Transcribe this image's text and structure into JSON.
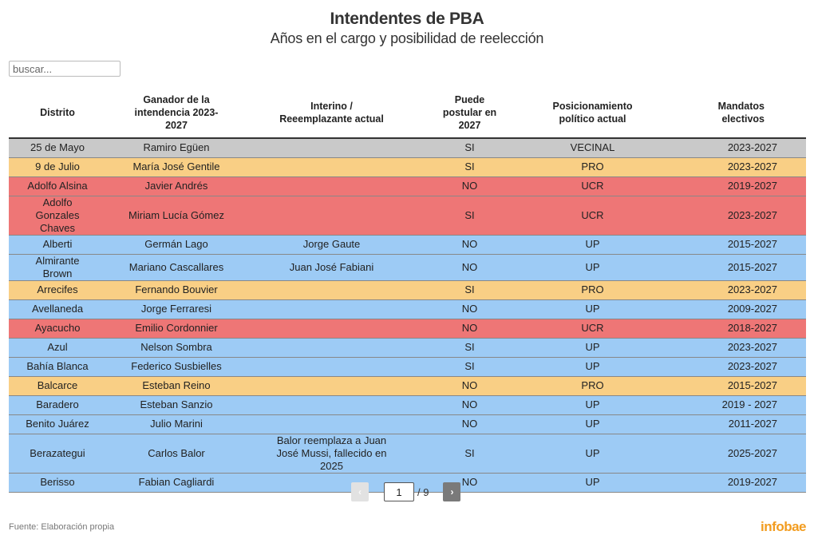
{
  "header": {
    "title": "Intendentes de PBA",
    "subtitle": "Años en el cargo y posibilidad de reelección"
  },
  "search": {
    "placeholder": "buscar...",
    "value": ""
  },
  "table": {
    "columns": [
      "Distrito",
      "Ganador de la intendencia 2023-2027",
      "Interino / Reeemplazante actual",
      "Puede postular en 2027",
      "Posicionamiento político actual",
      "Mandatos electivos"
    ],
    "rows": [
      [
        "25 de Mayo",
        "Ramiro Egüen",
        "",
        "SI",
        "VECINAL",
        "2023-2027"
      ],
      [
        "9 de Julio",
        "María José Gentile",
        "",
        "SI",
        "PRO",
        "2023-2027"
      ],
      [
        "Adolfo Alsina",
        "Javier Andrés",
        "",
        "NO",
        "UCR",
        "2019-2027"
      ],
      [
        "Adolfo Gonzales Chaves",
        "Miriam Lucía Gómez",
        "",
        "SI",
        "UCR",
        "2023-2027"
      ],
      [
        "Alberti",
        "Germán Lago",
        "Jorge Gaute",
        "NO",
        "UP",
        "2015-2027"
      ],
      [
        "Almirante Brown",
        "Mariano Cascallares",
        "Juan José Fabiani",
        "NO",
        "UP",
        "2015-2027"
      ],
      [
        "Arrecifes",
        "Fernando Bouvier",
        "",
        "SI",
        "PRO",
        "2023-2027"
      ],
      [
        "Avellaneda",
        "Jorge Ferraresi",
        "",
        "NO",
        "UP",
        "2009-2027"
      ],
      [
        "Ayacucho",
        "Emilio Cordonnier",
        "",
        "NO",
        "UCR",
        "2018-2027"
      ],
      [
        "Azul",
        "Nelson Sombra",
        "",
        "SI",
        "UP",
        "2023-2027"
      ],
      [
        "Bahía Blanca",
        "Federico Susbielles",
        "",
        "SI",
        "UP",
        "2023-2027"
      ],
      [
        "Balcarce",
        "Esteban Reino",
        "",
        "NO",
        "PRO",
        "2015-2027"
      ],
      [
        "Baradero",
        "Esteban Sanzio",
        "",
        "NO",
        "UP",
        "2019 - 2027"
      ],
      [
        "Benito Juárez",
        "Julio Marini",
        "",
        "NO",
        "UP",
        "2011-2027"
      ],
      [
        "Berazategui",
        "Carlos Balor",
        "Balor reemplaza a Juan José Mussi, fallecido en 2025",
        "SI",
        "UP",
        "2025-2027"
      ],
      [
        "Berisso",
        "Fabian Cagliardi",
        "",
        "NO",
        "UP",
        "2019-2027"
      ]
    ]
  },
  "pagination": {
    "current": "1",
    "total": "/ 9",
    "prev": "‹",
    "next": "›"
  },
  "footer": {
    "source": "Fuente: Elaboración propia",
    "logo": "infobae"
  },
  "colors": {
    "VECINAL": "#c9c9c9",
    "PRO": "#f9cf85",
    "UCR": "#ee7676",
    "UP": "#9dcbf5",
    "logo": "#f29c1f"
  }
}
